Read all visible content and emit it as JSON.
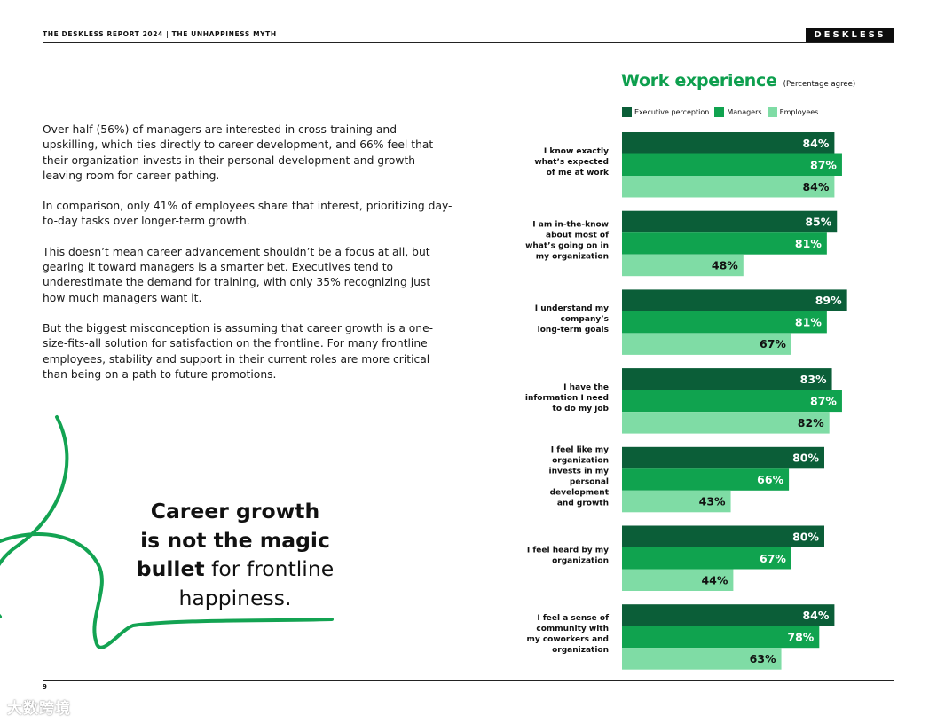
{
  "header": {
    "title": "THE DESKLESS REPORT 2024  |  THE UNHAPPINESS MYTH",
    "logo": "DESKLESS"
  },
  "body": {
    "paragraphs": [
      "Over half (56%) of managers are interested in cross-training and upskilling, which ties directly to career development, and 66% feel that their organization invests in their personal development and growth—leaving room for career pathing.",
      "In comparison, only 41% of employees share that interest, prioritizing day-to-day tasks over longer-term growth.",
      "This doesn’t mean career advancement shouldn’t be a focus at all, but gearing it toward managers is a smarter bet. Executives tend to underestimate the demand for training, with only 35% recognizing just how much managers want it.",
      "But the biggest misconception is assuming that career growth is a one-size-fits-all solution for satisfaction on the frontline. For many frontline employees, stability and support in their current roles are more critical than being on a path to future promotions."
    ]
  },
  "quote": {
    "line1": "Career growth",
    "line2": "is not the magic",
    "line3_bold": "bullet",
    "line3_rest": " for frontline",
    "line4": "happiness."
  },
  "page_number": "9",
  "watermark": "大数跨境",
  "colors": {
    "executive": "#0b5e38",
    "managers": "#10a34f",
    "employees": "#7fdca5",
    "title_green": "#0e9f4e"
  },
  "chart_data": {
    "type": "bar",
    "orientation": "horizontal",
    "title": "Work experience",
    "subtitle": "(Percentage agree)",
    "legend": [
      "Executive perception",
      "Managers",
      "Employees"
    ],
    "categories": [
      [
        "I know  exactly",
        "what’s expected",
        "of me at work"
      ],
      [
        "I am in-the-know",
        "about most of",
        "what’s going on in",
        "my organization"
      ],
      [
        "I understand my",
        "company’s",
        "long-term goals"
      ],
      [
        "I have the",
        "information I need",
        "to do my job"
      ],
      [
        "I feel like my",
        "organization",
        "invests in my",
        "personal",
        "development",
        "and growth"
      ],
      [
        "I feel heard by my",
        "organization"
      ],
      [
        "I feel a sense of",
        "community with",
        "my coworkers and",
        "organization"
      ]
    ],
    "series": [
      {
        "name": "Executive perception",
        "values": [
          84,
          85,
          89,
          83,
          80,
          80,
          84
        ]
      },
      {
        "name": "Managers",
        "values": [
          87,
          81,
          81,
          87,
          66,
          67,
          78
        ]
      },
      {
        "name": "Employees",
        "values": [
          84,
          48,
          67,
          82,
          43,
          44,
          63
        ]
      }
    ],
    "value_suffix": "%",
    "xlim": [
      0,
      100
    ]
  }
}
